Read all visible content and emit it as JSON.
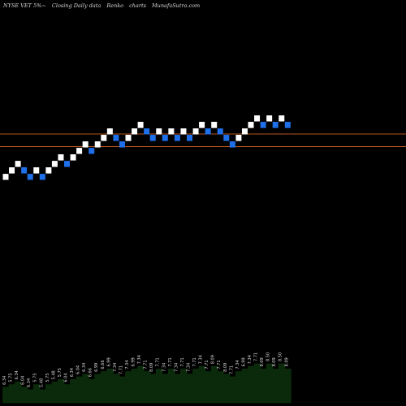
{
  "header": {
    "ticker": "NYSE VET 5%~",
    "caption": "Closing Daily data",
    "chart_kind": "Renko",
    "word_charts": "charts",
    "site": "MunafaSutra.com"
  },
  "colors": {
    "background": "#000000",
    "up_brick": "#ffffff",
    "down_brick": "#1e6fe8",
    "reference_line": "#b5561d",
    "volume_fill": "#0b2a0b",
    "volume_label": "#d8d8d8"
  },
  "chart_data": {
    "type": "renko",
    "title": "NYSE VET 5%~  Closing Daily data  Renko  charts  MunafaSutra.com",
    "brick_size_percent": 5,
    "y_scale": "log",
    "reference_lines": [
      7.76,
      7.06
    ],
    "bricks": [
      {
        "dir": "up",
        "low": 5.48,
        "high": 5.75
      },
      {
        "dir": "up",
        "low": 5.75,
        "high": 6.04
      },
      {
        "dir": "up",
        "low": 6.04,
        "high": 6.34
      },
      {
        "dir": "down",
        "low": 5.75,
        "high": 6.04
      },
      {
        "dir": "down",
        "low": 5.48,
        "high": 5.75
      },
      {
        "dir": "up",
        "low": 5.75,
        "high": 6.04
      },
      {
        "dir": "down",
        "low": 5.48,
        "high": 5.75
      },
      {
        "dir": "up",
        "low": 5.75,
        "high": 6.04
      },
      {
        "dir": "up",
        "low": 6.04,
        "high": 6.34
      },
      {
        "dir": "up",
        "low": 6.34,
        "high": 6.66
      },
      {
        "dir": "down",
        "low": 6.04,
        "high": 6.34
      },
      {
        "dir": "up",
        "low": 6.34,
        "high": 6.66
      },
      {
        "dir": "up",
        "low": 6.66,
        "high": 6.99
      },
      {
        "dir": "up",
        "low": 6.99,
        "high": 7.34
      },
      {
        "dir": "down",
        "low": 6.66,
        "high": 6.99
      },
      {
        "dir": "up",
        "low": 6.99,
        "high": 7.34
      },
      {
        "dir": "up",
        "low": 7.34,
        "high": 7.71
      },
      {
        "dir": "up",
        "low": 7.71,
        "high": 8.09
      },
      {
        "dir": "down",
        "low": 7.34,
        "high": 7.71
      },
      {
        "dir": "down",
        "low": 6.99,
        "high": 7.34
      },
      {
        "dir": "up",
        "low": 7.34,
        "high": 7.71
      },
      {
        "dir": "up",
        "low": 7.71,
        "high": 8.09
      },
      {
        "dir": "up",
        "low": 8.09,
        "high": 8.5
      },
      {
        "dir": "down",
        "low": 7.71,
        "high": 8.09
      },
      {
        "dir": "down",
        "low": 7.34,
        "high": 7.71
      },
      {
        "dir": "up",
        "low": 7.71,
        "high": 8.09
      },
      {
        "dir": "down",
        "low": 7.34,
        "high": 7.71
      },
      {
        "dir": "up",
        "low": 7.71,
        "high": 8.09
      },
      {
        "dir": "down",
        "low": 7.34,
        "high": 7.71
      },
      {
        "dir": "up",
        "low": 7.71,
        "high": 8.09
      },
      {
        "dir": "down",
        "low": 7.34,
        "high": 7.71
      },
      {
        "dir": "up",
        "low": 7.71,
        "high": 8.09
      },
      {
        "dir": "up",
        "low": 8.09,
        "high": 8.5
      },
      {
        "dir": "down",
        "low": 7.71,
        "high": 8.09
      },
      {
        "dir": "up",
        "low": 8.09,
        "high": 8.5
      },
      {
        "dir": "down",
        "low": 7.71,
        "high": 8.09
      },
      {
        "dir": "down",
        "low": 7.34,
        "high": 7.71
      },
      {
        "dir": "down",
        "low": 6.99,
        "high": 7.34
      },
      {
        "dir": "up",
        "low": 7.34,
        "high": 7.71
      },
      {
        "dir": "up",
        "low": 7.71,
        "high": 8.09
      },
      {
        "dir": "up",
        "low": 8.09,
        "high": 8.5
      },
      {
        "dir": "up",
        "low": 8.5,
        "high": 8.92
      },
      {
        "dir": "down",
        "low": 8.09,
        "high": 8.5
      },
      {
        "dir": "up",
        "low": 8.5,
        "high": 8.92
      },
      {
        "dir": "down",
        "low": 8.09,
        "high": 8.5
      },
      {
        "dir": "up",
        "low": 8.5,
        "high": 8.92
      },
      {
        "dir": "down",
        "low": 8.09,
        "high": 8.5
      }
    ],
    "volume_labels": [
      "6.34",
      "5.75",
      "6.34",
      "6.04",
      "6.34",
      "5.75",
      "5.48",
      "5.75",
      "5.48",
      "5.75",
      "6.04",
      "6.34",
      "6.04",
      "6.34",
      "6.66",
      "6.99",
      "6.66",
      "6.99",
      "7.34",
      "7.71",
      "7.34",
      "6.99",
      "7.34",
      "7.71",
      "8.09",
      "7.71",
      "7.34",
      "7.71",
      "7.34",
      "7.71",
      "7.34",
      "7.71",
      "7.34",
      "7.71",
      "8.09",
      "7.71",
      "8.09",
      "7.71",
      "7.34",
      "6.99",
      "7.34",
      "7.71",
      "8.09",
      "8.50",
      "8.09",
      "8.50",
      "8.09"
    ]
  }
}
